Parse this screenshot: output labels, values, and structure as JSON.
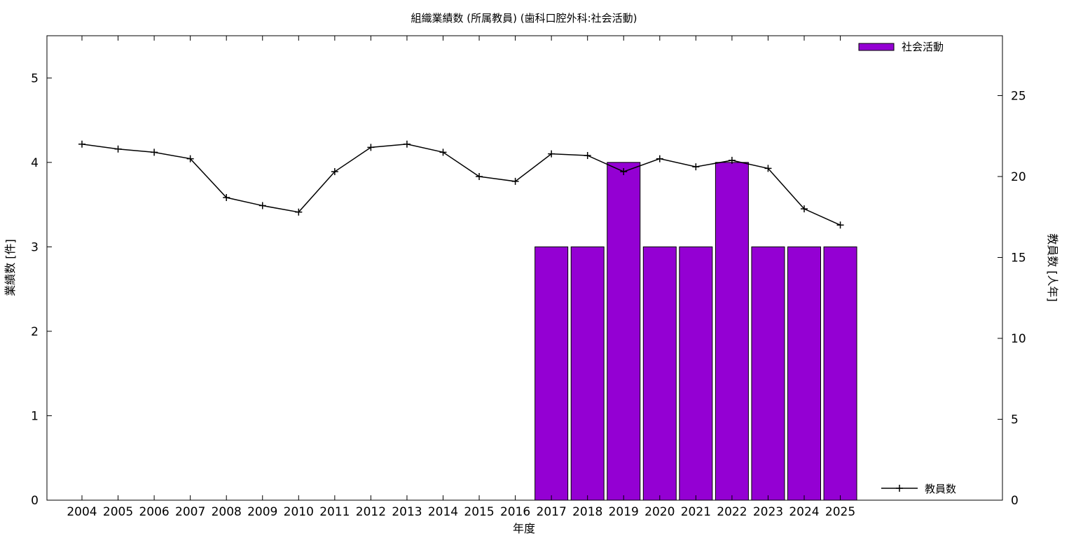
{
  "chart_data": {
    "type": "bar",
    "title": "組織業績数 (所属教員) (歯科口腔外科:社会活動)",
    "xlabel": "年度",
    "ylabel": "業績数 [件]",
    "y2label": "教員数 [人年]",
    "categories": [
      "2004",
      "2005",
      "2006",
      "2007",
      "2008",
      "2009",
      "2010",
      "2011",
      "2012",
      "2013",
      "2014",
      "2015",
      "2016",
      "2017",
      "2018",
      "2019",
      "2020",
      "2021",
      "2022",
      "2023",
      "2024",
      "2025"
    ],
    "ylim": [
      0,
      5.5
    ],
    "yticks": [
      "0",
      "1",
      "2",
      "3",
      "4",
      "5"
    ],
    "y2lim": [
      0,
      28.7
    ],
    "y2ticks": [
      "0",
      "5",
      "10",
      "15",
      "20",
      "25"
    ],
    "grid": false,
    "series": [
      {
        "name": "社会活動",
        "type": "bar",
        "axis": "left",
        "color": "#9400d3",
        "values": [
          0,
          0,
          0,
          0,
          0,
          0,
          0,
          0,
          0,
          0,
          0,
          0,
          0,
          3,
          3,
          4,
          3,
          3,
          4,
          3,
          3,
          3
        ]
      },
      {
        "name": "教員数",
        "type": "line",
        "axis": "right",
        "color": "#000000",
        "marker": "plus",
        "values": [
          22.0,
          21.7,
          21.5,
          21.1,
          18.7,
          18.2,
          17.8,
          20.3,
          21.8,
          22.0,
          21.5,
          20.0,
          19.7,
          21.4,
          21.3,
          20.3,
          21.1,
          20.6,
          21.0,
          20.5,
          18.0,
          17.0
        ]
      }
    ],
    "legend": [
      {
        "label": "社会活動",
        "placement": "top-right",
        "swatch": "bar"
      },
      {
        "label": "教員数",
        "placement": "bottom-right",
        "swatch": "line"
      }
    ]
  }
}
